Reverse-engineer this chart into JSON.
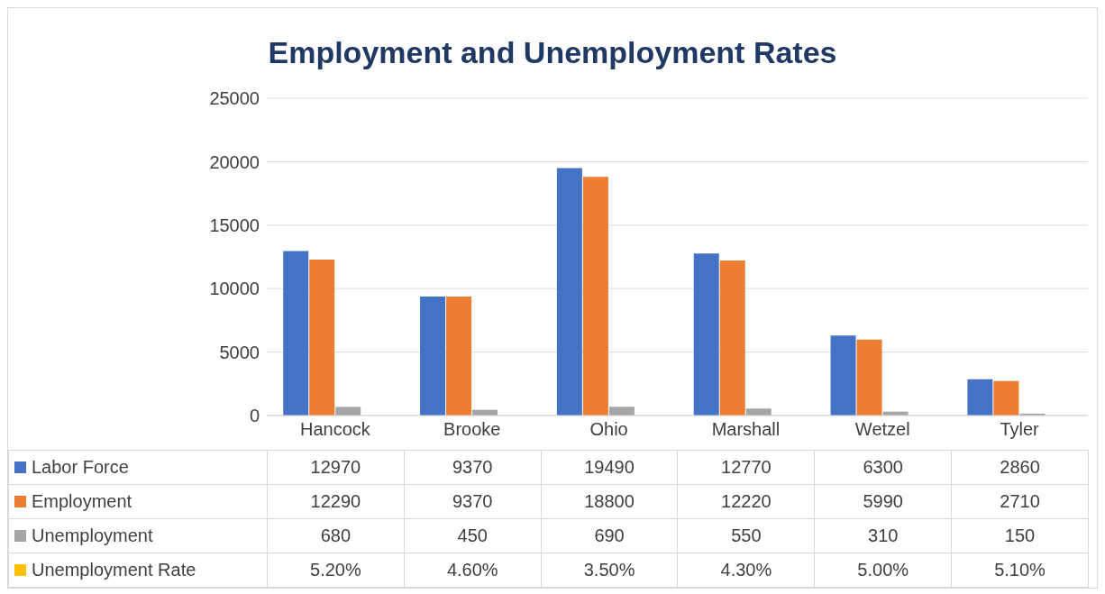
{
  "chart_data": {
    "type": "bar",
    "title": "Employment and Unemployment Rates",
    "categories": [
      "Hancock",
      "Brooke",
      "Ohio",
      "Marshall",
      "Wetzel",
      "Tyler"
    ],
    "series": [
      {
        "name": "Labor Force",
        "color": "#4472c4",
        "values": [
          12970,
          9370,
          19490,
          12770,
          6300,
          2860
        ],
        "value_labels": [
          "12970",
          "9370",
          "19490",
          "12770",
          "6300",
          "2860"
        ]
      },
      {
        "name": "Employment",
        "color": "#ed7d31",
        "values": [
          12290,
          9370,
          18800,
          12220,
          5990,
          2710
        ],
        "value_labels": [
          "12290",
          "9370",
          "18800",
          "12220",
          "5990",
          "2710"
        ]
      },
      {
        "name": "Unemployment",
        "color": "#a5a5a5",
        "values": [
          680,
          450,
          690,
          550,
          310,
          150
        ],
        "value_labels": [
          "680",
          "450",
          "690",
          "550",
          "310",
          "150"
        ]
      },
      {
        "name": "Unemployment Rate",
        "color": "#ffc000",
        "values": [
          5.2,
          4.6,
          3.5,
          4.3,
          5.0,
          5.1
        ],
        "value_labels": [
          "5.20%",
          "4.60%",
          "3.50%",
          "4.30%",
          "5.00%",
          "5.10%"
        ]
      }
    ],
    "ylim": [
      0,
      25000
    ],
    "yticks": [
      0,
      5000,
      10000,
      15000,
      20000,
      25000
    ],
    "grid": "y",
    "legend": "bottom"
  }
}
